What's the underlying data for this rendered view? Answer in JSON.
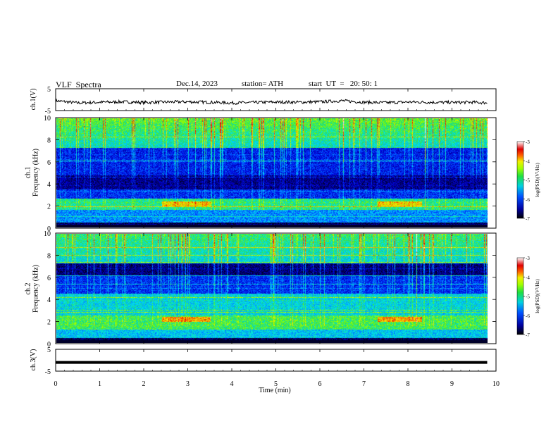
{
  "header": {
    "title": "VLF  Spectra",
    "date": "Dec.14, 2023",
    "station": "station= ATH",
    "start": "start  UT  =   20: 50: 1"
  },
  "chart_data": [
    {
      "type": "line",
      "panel": "ch1",
      "ylabel": "ch.1(V)",
      "ylim": [
        -5,
        5
      ],
      "yticks": [
        "5",
        "-5"
      ],
      "x": [
        0,
        0.5,
        1,
        1.5,
        2,
        2.5,
        3,
        3.5,
        4,
        4.5,
        5,
        5.5,
        6,
        6.5,
        7,
        7.5,
        8,
        8.5,
        9,
        9.5,
        9.8
      ],
      "y": [
        -0.5,
        -1.5,
        -1.2,
        -1.0,
        -1.3,
        -1.1,
        -1.0,
        -1.2,
        -1.5,
        -1.3,
        -1.1,
        -1.2,
        -1.0,
        -0.5,
        -1.2,
        -1.4,
        -1.1,
        -1.2,
        -1.3,
        -1.2,
        -1.5
      ],
      "color": "#000000"
    },
    {
      "type": "heatmap",
      "panel": "ch1-spectrogram",
      "ylabel": "ch.1\nFrequency (kHz)",
      "ylim": [
        0,
        10
      ],
      "yticks": [
        "0",
        "2",
        "4",
        "6",
        "8",
        "10"
      ],
      "colorbar": {
        "label": "log(PSD)(V²/Hz)",
        "range": [
          -7,
          -3
        ],
        "ticks": [
          "-3",
          "-4",
          "-5",
          "-6",
          "-7"
        ]
      },
      "description_bands_khz": [
        2.0,
        4.0,
        6.0
      ],
      "bursts_min": [
        2.4,
        3.5,
        7.3,
        8.3
      ]
    },
    {
      "type": "heatmap",
      "panel": "ch2-spectrogram",
      "ylabel": "ch.2\nFrequency (kHz)",
      "ylim": [
        0,
        10
      ],
      "yticks": [
        "0",
        "2",
        "4",
        "6",
        "8",
        "10"
      ],
      "colorbar": {
        "label": "log(PSD)(V²/Hz)",
        "range": [
          -7,
          -3
        ],
        "ticks": [
          "-3",
          "-4",
          "-5",
          "-6",
          "-7"
        ]
      },
      "bursts_min": [
        2.4,
        3.5,
        7.3,
        8.3
      ]
    },
    {
      "type": "line",
      "panel": "ch3",
      "ylabel": "ch.3(V)",
      "ylim": [
        -5,
        5
      ],
      "yticks": [
        "5",
        "-5"
      ],
      "x": [
        0,
        9.8
      ],
      "y": [
        -1,
        -1
      ],
      "color": "#000000"
    }
  ],
  "xaxis": {
    "label": "Time  (min)",
    "range": [
      0,
      10
    ],
    "ticks": [
      "0",
      "1",
      "2",
      "3",
      "4",
      "5",
      "6",
      "7",
      "8",
      "9",
      "10"
    ]
  },
  "colormap": [
    "#000010",
    "#00007a",
    "#0000d8",
    "#0040ff",
    "#00a0ff",
    "#00e8e8",
    "#20d870",
    "#80ff00",
    "#f0f000",
    "#ff8000",
    "#e00000",
    "#f0c0c0",
    "#ffffff"
  ]
}
